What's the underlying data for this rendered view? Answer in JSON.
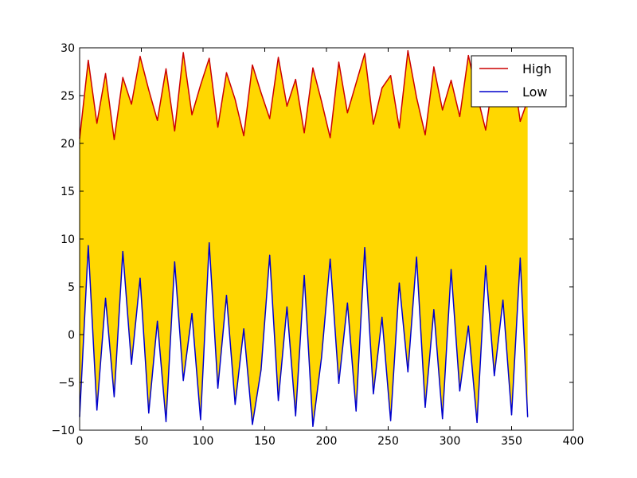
{
  "chart_data": {
    "type": "area",
    "title": "",
    "xlabel": "",
    "ylabel": "",
    "xlim": [
      0,
      400
    ],
    "ylim": [
      -10,
      30
    ],
    "xticks": [
      0,
      50,
      100,
      150,
      200,
      250,
      300,
      350,
      400
    ],
    "yticks": [
      -10,
      -5,
      0,
      5,
      10,
      15,
      20,
      25,
      30
    ],
    "xtick_labels": [
      "0",
      "50",
      "100",
      "150",
      "200",
      "250",
      "300",
      "350",
      "400"
    ],
    "ytick_labels": [
      "−10",
      "−5",
      "0",
      "5",
      "10",
      "15",
      "20",
      "25",
      "30"
    ],
    "grid": false,
    "legend_position": "top-right",
    "fill_color": "#ffd700",
    "x": [
      0,
      7,
      14,
      21,
      28,
      35,
      42,
      49,
      56,
      63,
      70,
      77,
      84,
      91,
      98,
      105,
      112,
      119,
      126,
      133,
      140,
      147,
      154,
      161,
      168,
      175,
      182,
      189,
      196,
      203,
      210,
      217,
      224,
      231,
      238,
      245,
      252,
      259,
      266,
      273,
      280,
      287,
      294,
      301,
      308,
      315,
      322,
      329,
      336,
      343,
      350,
      357,
      363
    ],
    "series": [
      {
        "name": "High",
        "color": "#cc0000",
        "values": [
          20.5,
          28.7,
          22.1,
          27.3,
          20.4,
          26.9,
          24.1,
          29.1,
          25.6,
          22.4,
          27.8,
          21.3,
          29.5,
          23.0,
          26.1,
          28.9,
          21.7,
          27.4,
          24.6,
          20.8,
          28.2,
          25.3,
          22.6,
          29.0,
          23.9,
          26.7,
          21.1,
          27.9,
          24.4,
          20.6,
          28.5,
          23.2,
          26.3,
          29.4,
          22.0,
          25.8,
          27.1,
          21.6,
          29.7,
          24.8,
          20.9,
          28.0,
          23.5,
          26.6,
          22.8,
          29.2,
          25.1,
          21.4,
          27.6,
          24.0,
          28.8,
          22.3,
          24.5
        ]
      },
      {
        "name": "Low",
        "color": "#0000cc",
        "values": [
          -8.6,
          9.3,
          -7.9,
          3.8,
          -6.5,
          8.7,
          -3.1,
          5.9,
          -8.2,
          1.4,
          -9.1,
          7.6,
          -4.8,
          2.2,
          -8.9,
          9.6,
          -5.6,
          4.1,
          -7.3,
          0.6,
          -9.4,
          -3.7,
          8.3,
          -6.9,
          2.9,
          -8.5,
          6.2,
          -9.6,
          -2.4,
          7.9,
          -5.1,
          3.3,
          -8.0,
          9.1,
          -6.2,
          1.8,
          -9.0,
          5.4,
          -3.9,
          8.1,
          -7.6,
          2.6,
          -8.8,
          6.8,
          -5.9,
          0.9,
          -9.2,
          7.2,
          -4.3,
          3.6,
          -8.4,
          8.0,
          -8.6
        ]
      }
    ]
  }
}
